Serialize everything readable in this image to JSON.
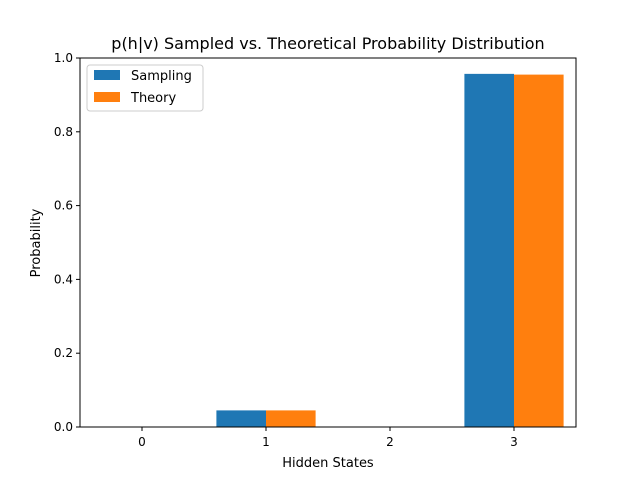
{
  "chart_data": {
    "type": "bar",
    "title": "p(h|v) Sampled vs. Theoretical Probability Distribution",
    "xlabel": "Hidden States",
    "ylabel": "Probability",
    "categories": [
      "0",
      "1",
      "2",
      "3"
    ],
    "series": [
      {
        "name": "Sampling",
        "color": "#1f77b4",
        "values": [
          0.0,
          0.045,
          0.0,
          0.957
        ]
      },
      {
        "name": "Theory",
        "color": "#ff7f0e",
        "values": [
          0.0,
          0.045,
          0.0,
          0.955
        ]
      }
    ],
    "ylim": [
      0,
      1.0
    ],
    "yticks": [
      "0.0",
      "0.2",
      "0.4",
      "0.6",
      "0.8",
      "1.0"
    ],
    "grid": false,
    "legend_position": "top-left"
  }
}
